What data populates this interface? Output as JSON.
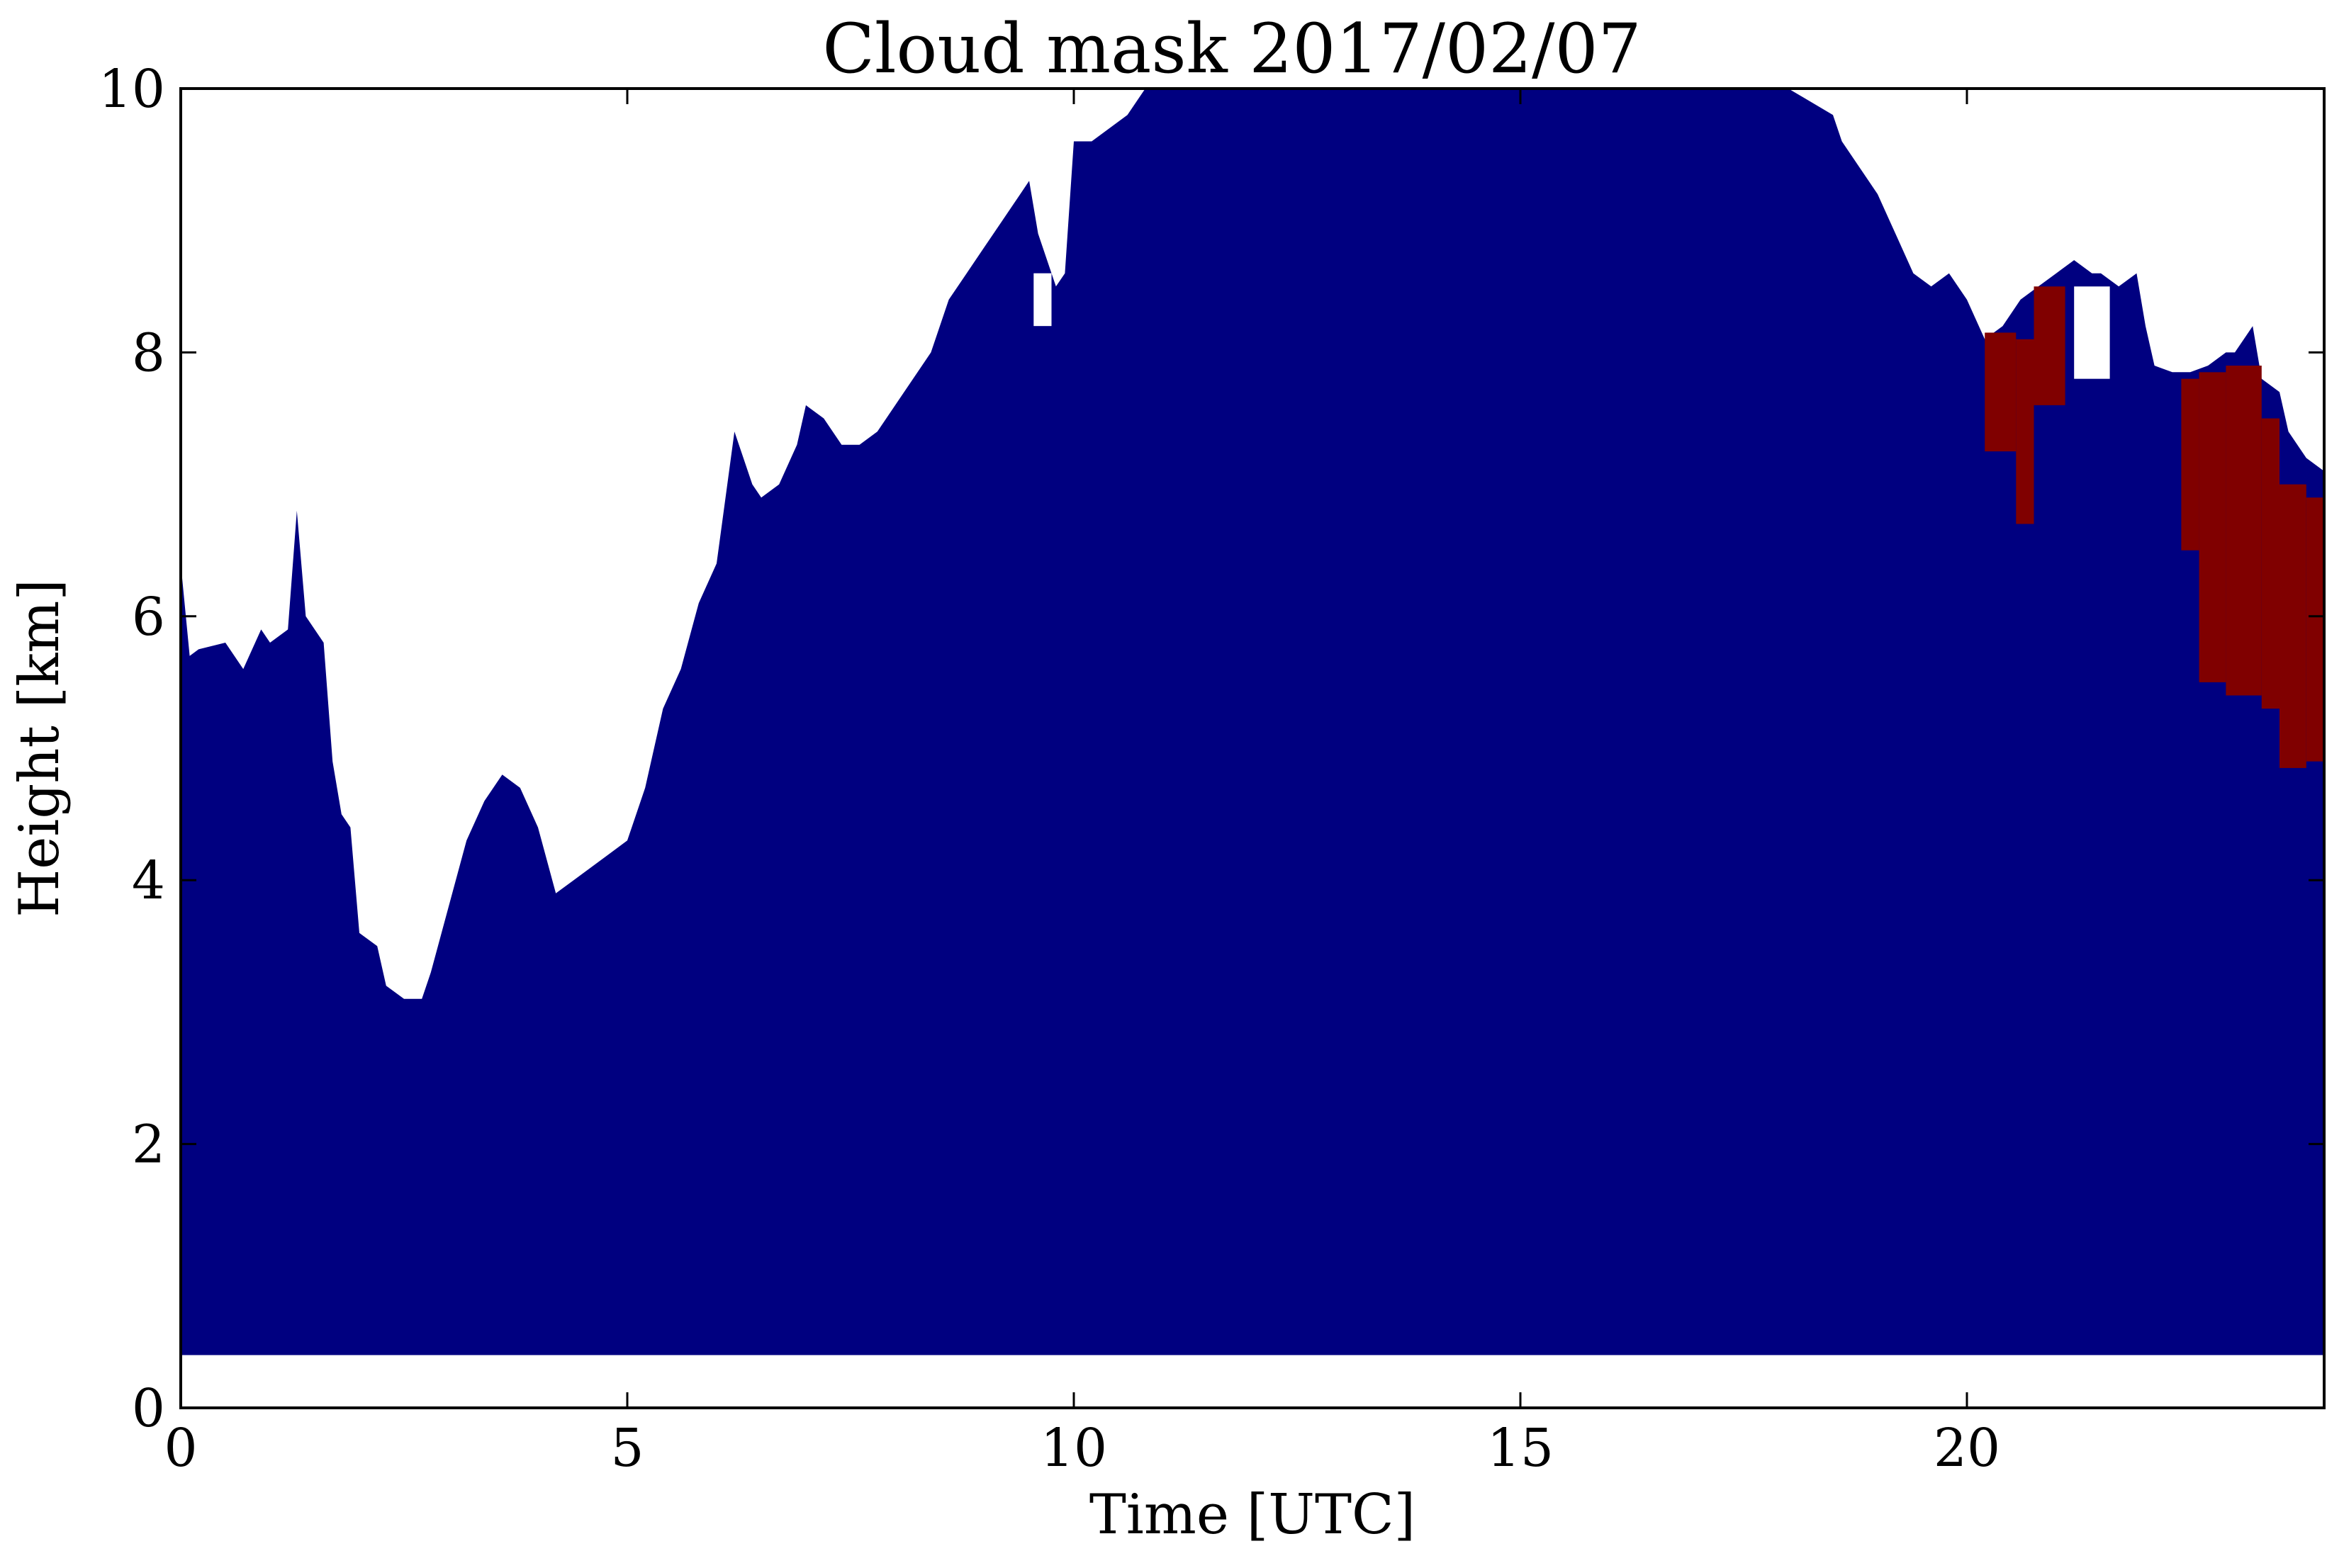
{
  "chart_data": {
    "type": "heatmap",
    "title": "Cloud mask 2017/02/07",
    "xlabel": "Time [UTC]",
    "ylabel": "Height [km]",
    "xlim": [
      0,
      24
    ],
    "ylim": [
      0,
      10
    ],
    "x_ticks": [
      0,
      5,
      10,
      15,
      20
    ],
    "y_ticks": [
      0,
      2,
      4,
      6,
      8,
      10
    ],
    "grid": false,
    "colors": {
      "cloud": "#000080",
      "other": "#800000",
      "background": "#ffffff"
    },
    "mask_bottom_km": 0.4,
    "cloud_top": {
      "x": [
        0,
        0.1,
        0.2,
        0.5,
        0.7,
        0.9,
        1.0,
        1.2,
        1.3,
        1.4,
        1.6,
        1.7,
        1.8,
        1.9,
        2.0,
        2.2,
        2.3,
        2.5,
        2.7,
        2.8,
        3.0,
        3.2,
        3.4,
        3.6,
        3.8,
        4.0,
        4.2,
        4.4,
        4.6,
        4.8,
        5.0,
        5.2,
        5.4,
        5.6,
        5.8,
        6.0,
        6.1,
        6.2,
        6.3,
        6.4,
        6.5,
        6.7,
        6.9,
        7.0,
        7.2,
        7.4,
        7.6,
        7.8,
        8.0,
        8.2,
        8.4,
        8.6,
        8.8,
        9.0,
        9.2,
        9.4,
        9.5,
        9.6,
        9.8,
        9.9,
        10.0,
        10.2,
        10.4,
        10.6,
        10.7,
        10.8,
        10.9,
        11.0,
        12.0,
        14.0,
        16.0,
        18.0,
        18.5,
        18.6,
        18.8,
        19.0,
        19.2,
        19.4,
        19.6,
        19.8,
        20.0,
        20.2,
        20.4,
        20.6,
        20.8,
        21.0,
        21.2,
        21.4,
        21.5,
        21.7,
        21.9,
        22.0,
        22.1,
        22.3,
        22.5,
        22.7,
        22.9,
        23.0,
        23.2,
        23.3,
        23.5,
        23.6,
        23.8,
        24.0
      ],
      "y": [
        6.4,
        5.7,
        5.75,
        5.8,
        5.6,
        5.9,
        5.8,
        5.9,
        6.8,
        6.0,
        5.8,
        4.9,
        4.5,
        4.4,
        3.6,
        3.5,
        3.2,
        3.1,
        3.1,
        3.3,
        3.8,
        4.3,
        4.6,
        4.8,
        4.7,
        4.4,
        3.9,
        4.0,
        4.1,
        4.2,
        4.3,
        4.7,
        5.3,
        5.6,
        6.1,
        6.4,
        6.9,
        7.4,
        7.2,
        7.0,
        6.9,
        7.0,
        7.3,
        7.6,
        7.5,
        7.3,
        7.3,
        7.4,
        7.6,
        7.8,
        8.0,
        8.4,
        8.6,
        8.8,
        9.0,
        9.2,
        9.3,
        8.9,
        8.5,
        8.6,
        9.6,
        9.6,
        9.7,
        9.8,
        9.9,
        10.0,
        10.0,
        10.0,
        10.0,
        10.0,
        10.0,
        10.0,
        9.8,
        9.6,
        9.4,
        9.2,
        8.9,
        8.6,
        8.5,
        8.6,
        8.4,
        8.1,
        8.2,
        8.4,
        8.5,
        8.6,
        8.7,
        8.6,
        8.6,
        8.5,
        8.6,
        8.2,
        7.9,
        7.85,
        7.85,
        7.9,
        8.0,
        8.0,
        8.2,
        7.8,
        7.7,
        7.4,
        7.2,
        7.1
      ]
    },
    "cloud_gaps": [
      {
        "x": [
          1.55,
          2.05
        ],
        "y": [
          5.9,
          6.3
        ]
      },
      {
        "x": [
          21.2,
          21.6
        ],
        "y": [
          7.8,
          8.5
        ]
      },
      {
        "x": [
          9.55,
          9.75
        ],
        "y": [
          8.2,
          8.6
        ]
      }
    ],
    "other_regions": [
      {
        "x": [
          20.2,
          20.55
        ],
        "y": [
          7.25,
          8.15
        ]
      },
      {
        "x": [
          20.55,
          20.75
        ],
        "y": [
          6.7,
          8.1
        ]
      },
      {
        "x": [
          20.75,
          21.1
        ],
        "y": [
          7.6,
          8.5
        ]
      },
      {
        "x": [
          22.4,
          22.6
        ],
        "y": [
          6.5,
          7.8
        ]
      },
      {
        "x": [
          22.6,
          22.9
        ],
        "y": [
          5.5,
          7.85
        ]
      },
      {
        "x": [
          22.9,
          23.3
        ],
        "y": [
          5.4,
          7.9
        ]
      },
      {
        "x": [
          23.3,
          23.5
        ],
        "y": [
          5.3,
          7.5
        ]
      },
      {
        "x": [
          23.5,
          23.8
        ],
        "y": [
          4.85,
          7.0
        ]
      },
      {
        "x": [
          23.8,
          24.0
        ],
        "y": [
          4.9,
          6.9
        ]
      }
    ]
  }
}
